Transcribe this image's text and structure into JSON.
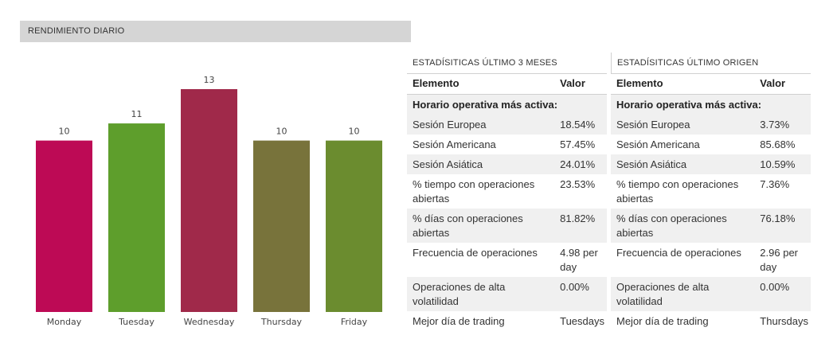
{
  "chart_header": "RENDIMIENTO DIARIO",
  "chart_data": {
    "type": "bar",
    "title": "RENDIMIENTO DIARIO",
    "categories": [
      "Monday",
      "Tuesday",
      "Wednesday",
      "Thursday",
      "Friday"
    ],
    "values": [
      10,
      11,
      13,
      10,
      10
    ],
    "colors": [
      "#bd0a55",
      "#5e9e2c",
      "#a0294a",
      "#78733b",
      "#6b8c2f"
    ],
    "ylim": [
      0,
      13
    ],
    "grid": false,
    "legend": "none"
  },
  "stats_3m": {
    "title": "ESTADÍSITICAS ÚLTIMO 3 MESES",
    "col_element": "Elemento",
    "col_value": "Valor",
    "group_label": "Horario operativa más activa:",
    "rows": [
      {
        "label": "Sesión Europea",
        "value": "18.54%"
      },
      {
        "label": "Sesión Americana",
        "value": "57.45%"
      },
      {
        "label": "Sesión Asiática",
        "value": "24.01%"
      },
      {
        "label": "% tiempo con operaciones abiertas",
        "value": "23.53%"
      },
      {
        "label": "% días con operaciones abiertas",
        "value": "81.82%"
      },
      {
        "label": "Frecuencia de operaciones",
        "value": "4.98 per day"
      },
      {
        "label": "Operaciones de alta volatilidad",
        "value": "0.00%"
      },
      {
        "label": "Mejor día de trading",
        "value": "Tuesdays"
      }
    ]
  },
  "stats_origin": {
    "title": "ESTADÍSITICAS ÚLTIMO ORIGEN",
    "col_element": "Elemento",
    "col_value": "Valor",
    "group_label": "Horario operativa más activa:",
    "rows": [
      {
        "label": "Sesión Europea",
        "value": "3.73%"
      },
      {
        "label": "Sesión Americana",
        "value": "85.68%"
      },
      {
        "label": "Sesión Asiática",
        "value": "10.59%"
      },
      {
        "label": "% tiempo con operaciones abiertas",
        "value": "7.36%"
      },
      {
        "label": "% días con operaciones abiertas",
        "value": "76.18%"
      },
      {
        "label": "Frecuencia de operaciones",
        "value": "2.96 per day"
      },
      {
        "label": "Operaciones de alta volatilidad",
        "value": "0.00%"
      },
      {
        "label": "Mejor día de trading",
        "value": "Thursdays"
      }
    ]
  }
}
